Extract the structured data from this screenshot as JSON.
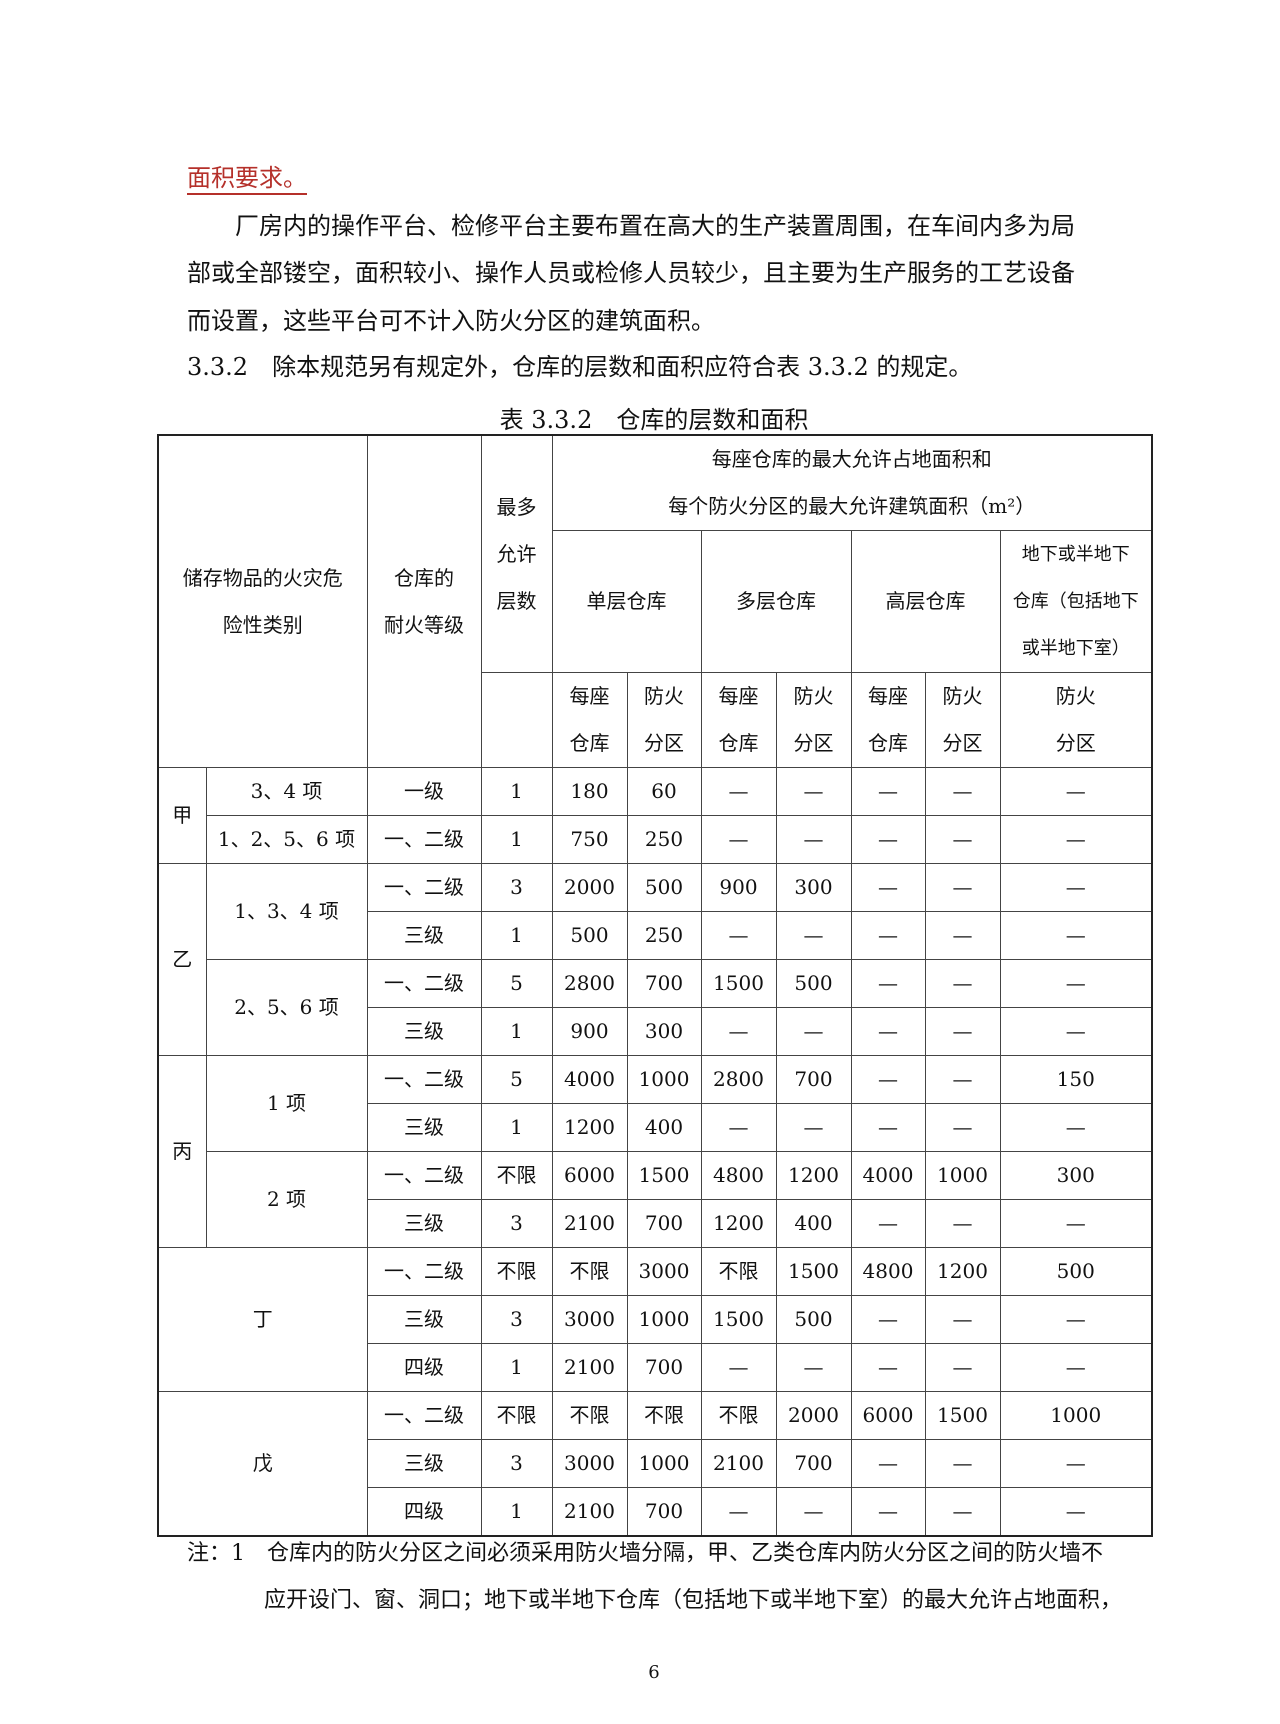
{
  "text": {
    "red_line": "面积要求。",
    "para_lines": [
      "　　厂房内的操作平台、检修平台主要布置在高大的生产装置周围，在车间内多为局",
      "部或全部镂空，面积较小、操作人员或检修人员较少，且主要为生产服务的工艺设备",
      "而设置，这些平台可不计入防火分区的建筑面积。"
    ],
    "clause": "3.3.2　除本规范另有规定外，仓库的层数和面积应符合表 3.3.2 的规定。",
    "caption": "表 3.3.2　仓库的层数和面积",
    "notes": [
      "注：1　仓库内的防火分区之间必须采用防火墙分隔，甲、乙类仓库内防火分区之间的防火墙不",
      "应开设门、窗、洞口；地下或半地下仓库（包括地下或半地下室）的最大允许占地面积，"
    ],
    "page_number": "6"
  },
  "table": {
    "header": {
      "category": [
        "储存物品的火灾危",
        "险性类别"
      ],
      "grade": [
        "仓库的",
        "耐火等级"
      ],
      "floors": [
        "最多",
        "允许",
        "层数"
      ],
      "area_title": [
        "每座仓库的最大允许占地面积和",
        "每个防火分区的最大允许建筑面积（m²）"
      ],
      "single": "单层仓库",
      "multi": "多层仓库",
      "high": "高层仓库",
      "underground": [
        "地下或半地下",
        "仓库（包括地下",
        "或半地下室）"
      ],
      "per_building": [
        "每座",
        "仓库"
      ],
      "per_zone": [
        "防火",
        "分区"
      ]
    },
    "groups": [
      {
        "category": "甲",
        "subgroups": [
          {
            "item": "3、4 项",
            "rows": [
              {
                "grade": "一级",
                "floors": "1",
                "values": [
                  "180",
                  "60",
                  "—",
                  "—",
                  "—",
                  "—",
                  "—"
                ]
              }
            ]
          },
          {
            "item": "1、2、5、6 项",
            "rows": [
              {
                "grade": "一、二级",
                "floors": "1",
                "values": [
                  "750",
                  "250",
                  "—",
                  "—",
                  "—",
                  "—",
                  "—"
                ]
              }
            ]
          }
        ]
      },
      {
        "category": "乙",
        "subgroups": [
          {
            "item": "1、3、4 项",
            "rows": [
              {
                "grade": "一、二级",
                "floors": "3",
                "values": [
                  "2000",
                  "500",
                  "900",
                  "300",
                  "—",
                  "—",
                  "—"
                ]
              },
              {
                "grade": "三级",
                "floors": "1",
                "values": [
                  "500",
                  "250",
                  "—",
                  "—",
                  "—",
                  "—",
                  "—"
                ]
              }
            ]
          },
          {
            "item": "2、5、6 项",
            "rows": [
              {
                "grade": "一、二级",
                "floors": "5",
                "values": [
                  "2800",
                  "700",
                  "1500",
                  "500",
                  "—",
                  "—",
                  "—"
                ]
              },
              {
                "grade": "三级",
                "floors": "1",
                "values": [
                  "900",
                  "300",
                  "—",
                  "—",
                  "—",
                  "—",
                  "—"
                ]
              }
            ]
          }
        ]
      },
      {
        "category": "丙",
        "subgroups": [
          {
            "item": "1 项",
            "rows": [
              {
                "grade": "一、二级",
                "floors": "5",
                "values": [
                  "4000",
                  "1000",
                  "2800",
                  "700",
                  "—",
                  "—",
                  "150"
                ]
              },
              {
                "grade": "三级",
                "floors": "1",
                "values": [
                  "1200",
                  "400",
                  "—",
                  "—",
                  "—",
                  "—",
                  "—"
                ]
              }
            ]
          },
          {
            "item": "2 项",
            "rows": [
              {
                "grade": "一、二级",
                "floors": "不限",
                "values": [
                  "6000",
                  "1500",
                  "4800",
                  "1200",
                  "4000",
                  "1000",
                  "300"
                ]
              },
              {
                "grade": "三级",
                "floors": "3",
                "values": [
                  "2100",
                  "700",
                  "1200",
                  "400",
                  "—",
                  "—",
                  "—"
                ]
              }
            ]
          }
        ]
      },
      {
        "category": "丁",
        "subgroups": [
          {
            "item": null,
            "rows": [
              {
                "grade": "一、二级",
                "floors": "不限",
                "values": [
                  "不限",
                  "3000",
                  "不限",
                  "1500",
                  "4800",
                  "1200",
                  "500"
                ]
              },
              {
                "grade": "三级",
                "floors": "3",
                "values": [
                  "3000",
                  "1000",
                  "1500",
                  "500",
                  "—",
                  "—",
                  "—"
                ]
              },
              {
                "grade": "四级",
                "floors": "1",
                "values": [
                  "2100",
                  "700",
                  "—",
                  "—",
                  "—",
                  "—",
                  "—"
                ]
              }
            ]
          }
        ]
      },
      {
        "category": "戊",
        "subgroups": [
          {
            "item": null,
            "rows": [
              {
                "grade": "一、二级",
                "floors": "不限",
                "values": [
                  "不限",
                  "不限",
                  "不限",
                  "2000",
                  "6000",
                  "1500",
                  "1000"
                ]
              },
              {
                "grade": "三级",
                "floors": "3",
                "values": [
                  "3000",
                  "1000",
                  "2100",
                  "700",
                  "—",
                  "—",
                  "—"
                ]
              },
              {
                "grade": "四级",
                "floors": "1",
                "values": [
                  "2100",
                  "700",
                  "—",
                  "—",
                  "—",
                  "—",
                  "—"
                ]
              }
            ]
          }
        ]
      }
    ]
  }
}
